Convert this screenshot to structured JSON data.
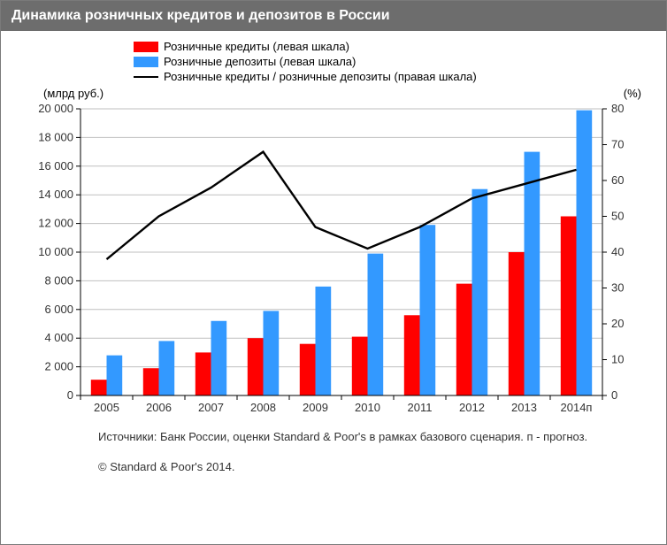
{
  "title": "Динамика розничных кредитов и депозитов в России",
  "legend": {
    "loans": {
      "label": "Розничные кредиты (левая шкала)",
      "color": "#ff0000"
    },
    "deposits": {
      "label": "Розничные депозиты (левая шкала)",
      "color": "#3399ff"
    },
    "ratio": {
      "label": "Розничные кредиты / розничные депозиты (правая шкала)",
      "color": "#000000"
    }
  },
  "axis": {
    "left_label": "(млрд руб.)",
    "right_label": "(%)"
  },
  "footer": {
    "source": "Источники: Банк России, оценки Standard & Poor's в рамках базового сценария. п - прогноз.",
    "copyright": "© Standard & Poor's 2014."
  },
  "chart": {
    "type": "bar+line",
    "categories": [
      "2005",
      "2006",
      "2007",
      "2008",
      "2009",
      "2010",
      "2011",
      "2012",
      "2013",
      "2014п"
    ],
    "series": {
      "loans": [
        1100,
        1900,
        3000,
        4000,
        3600,
        4100,
        5600,
        7800,
        10000,
        12500
      ],
      "deposits": [
        2800,
        3800,
        5200,
        5900,
        7600,
        9900,
        11900,
        14400,
        17000,
        19900
      ],
      "ratio": [
        38,
        50,
        58,
        68,
        47,
        41,
        47,
        55,
        59,
        63
      ]
    },
    "y_left": {
      "min": 0,
      "max": 20000,
      "step": 2000,
      "fmt": "space000"
    },
    "y_right": {
      "min": 0,
      "max": 80,
      "step": 10
    },
    "colors": {
      "loans": "#ff0000",
      "deposits": "#3399ff",
      "ratio_line": "#000000",
      "grid": "#bfbfbf",
      "axis": "#000000",
      "tick_text": "#333333",
      "background": "#ffffff"
    },
    "layout": {
      "font_size_tick": 13,
      "bar_group_gap": 0.35,
      "bar_width": 0.3,
      "line_width": 2.4,
      "tick_len": 5
    }
  }
}
